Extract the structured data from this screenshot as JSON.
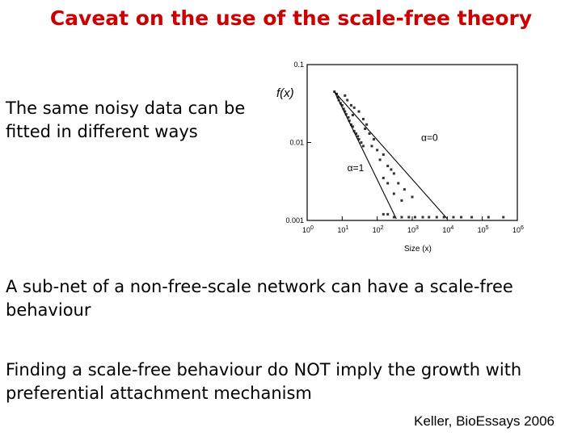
{
  "slide": {
    "title": "Caveat on the use of the scale-free theory",
    "text1": "The same noisy data can be fitted in different ways",
    "text2": "A sub-net of a non-free-scale network can have a scale-free behaviour",
    "text3": "Finding a scale-free behaviour do NOT imply the growth with preferential attachment mechanism",
    "credit": "Keller, BioEssays 2006",
    "title_color": "#cc0000"
  },
  "chart_data": {
    "type": "scatter",
    "xlabel": "Size (x)",
    "ylabel": "f(x)",
    "xscale": "log",
    "yscale": "log",
    "xlim": [
      1,
      1000000
    ],
    "ylim": [
      0.001,
      0.1
    ],
    "x_ticks": [
      "10^0",
      "10^1",
      "10^2",
      "10^3",
      "10^4",
      "10^5",
      "10^6"
    ],
    "y_ticks": [
      "0.1",
      "0.01",
      "0.001"
    ],
    "fit_lines": [
      {
        "label": "α=0",
        "points": [
          [
            6,
            0.045
          ],
          [
            10000,
            0.00105
          ]
        ]
      },
      {
        "label": "α=1",
        "points": [
          [
            6,
            0.045
          ],
          [
            350,
            0.00105
          ]
        ]
      }
    ],
    "annotations": [
      "α=0",
      "α=1"
    ],
    "series": [
      {
        "values": [
          [
            6,
            0.045
          ],
          [
            7,
            0.042
          ],
          [
            7.5,
            0.038
          ],
          [
            8,
            0.035
          ],
          [
            9,
            0.032
          ],
          [
            10,
            0.03
          ],
          [
            11,
            0.027
          ],
          [
            12,
            0.025
          ],
          [
            13,
            0.023
          ],
          [
            15,
            0.021
          ],
          [
            16,
            0.019
          ],
          [
            18,
            0.017
          ],
          [
            20,
            0.016
          ],
          [
            22,
            0.014
          ],
          [
            25,
            0.013
          ],
          [
            28,
            0.012
          ],
          [
            30,
            0.011
          ],
          [
            35,
            0.01
          ],
          [
            40,
            0.009
          ],
          [
            12,
            0.04
          ],
          [
            14,
            0.035
          ],
          [
            18,
            0.03
          ],
          [
            22,
            0.028
          ],
          [
            30,
            0.025
          ],
          [
            40,
            0.02
          ],
          [
            50,
            0.017
          ],
          [
            60,
            0.013
          ],
          [
            80,
            0.011
          ],
          [
            100,
            0.008
          ],
          [
            150,
            0.007
          ],
          [
            200,
            0.005
          ],
          [
            300,
            0.004
          ],
          [
            400,
            0.003
          ],
          [
            600,
            0.0025
          ],
          [
            1000,
            0.002
          ],
          [
            20,
            0.0225
          ],
          [
            45,
            0.015
          ],
          [
            70,
            0.009
          ],
          [
            120,
            0.006
          ],
          [
            250,
            0.0045
          ],
          [
            150,
            0.0035
          ],
          [
            200,
            0.003
          ],
          [
            300,
            0.0022
          ],
          [
            500,
            0.0018
          ],
          [
            150,
            0.0012
          ],
          [
            200,
            0.0012
          ],
          [
            300,
            0.0011
          ],
          [
            500,
            0.0011
          ],
          [
            800,
            0.0011
          ],
          [
            1200,
            0.0011
          ],
          [
            2000,
            0.0011
          ],
          [
            3000,
            0.0011
          ],
          [
            5000,
            0.0011
          ],
          [
            8000,
            0.0011
          ],
          [
            15000,
            0.0011
          ],
          [
            25000,
            0.0011
          ],
          [
            50000,
            0.0011
          ],
          [
            150000,
            0.0011
          ],
          [
            400000,
            0.0011
          ]
        ]
      }
    ]
  }
}
